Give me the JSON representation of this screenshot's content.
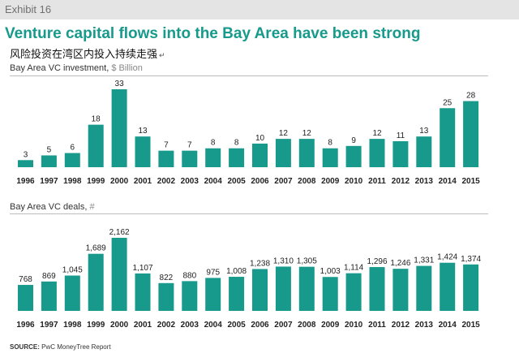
{
  "exhibit": {
    "label": "Exhibit 16"
  },
  "title": "Venture capital flows into the Bay Area have been strong",
  "subtitle_cn": "风险投资在湾区内投入持续走强",
  "subtitle_mark": "↵",
  "colors": {
    "bar": "#179a8c",
    "title": "#179a8c",
    "header_bg": "#e4e4e4"
  },
  "source": {
    "prefix": "SOURCE:",
    "text": "PwC MoneyTree Report"
  },
  "chart_data": [
    {
      "type": "bar",
      "title": "Bay Area VC investment,",
      "unit": "$ Billion",
      "categories": [
        "1996",
        "1997",
        "1998",
        "1999",
        "2000",
        "2001",
        "2002",
        "2003",
        "2004",
        "2005",
        "2006",
        "2007",
        "2008",
        "2009",
        "2010",
        "2011",
        "2012",
        "2013",
        "2014",
        "2015"
      ],
      "values": [
        3,
        5,
        6,
        18,
        33,
        13,
        7,
        7,
        8,
        8,
        10,
        12,
        12,
        8,
        9,
        12,
        11,
        13,
        25,
        28
      ],
      "labels": [
        "3",
        "5",
        "6",
        "18",
        "33",
        "13",
        "7",
        "7",
        "8",
        "8",
        "10",
        "12",
        "12",
        "8",
        "9",
        "12",
        "11",
        "13",
        "25",
        "28"
      ],
      "ylim": [
        0,
        33
      ]
    },
    {
      "type": "bar",
      "title": "Bay Area VC deals,",
      "unit": "#",
      "categories": [
        "1996",
        "1997",
        "1998",
        "1999",
        "2000",
        "2001",
        "2002",
        "2003",
        "2004",
        "2005",
        "2006",
        "2007",
        "2008",
        "2009",
        "2010",
        "2011",
        "2012",
        "2013",
        "2014",
        "2015"
      ],
      "values": [
        768,
        869,
        1045,
        1689,
        2162,
        1107,
        822,
        880,
        975,
        1008,
        1238,
        1310,
        1305,
        1003,
        1114,
        1296,
        1246,
        1331,
        1424,
        1374
      ],
      "labels": [
        "768",
        "869",
        "1,045",
        "1,689",
        "2,162",
        "1,107",
        "822",
        "880",
        "975",
        "1,008",
        "1,238",
        "1,310",
        "1,305",
        "1,003",
        "1,114",
        "1,296",
        "1,246",
        "1,331",
        "1,424",
        "1,374"
      ],
      "ylim": [
        0,
        2162
      ]
    }
  ]
}
